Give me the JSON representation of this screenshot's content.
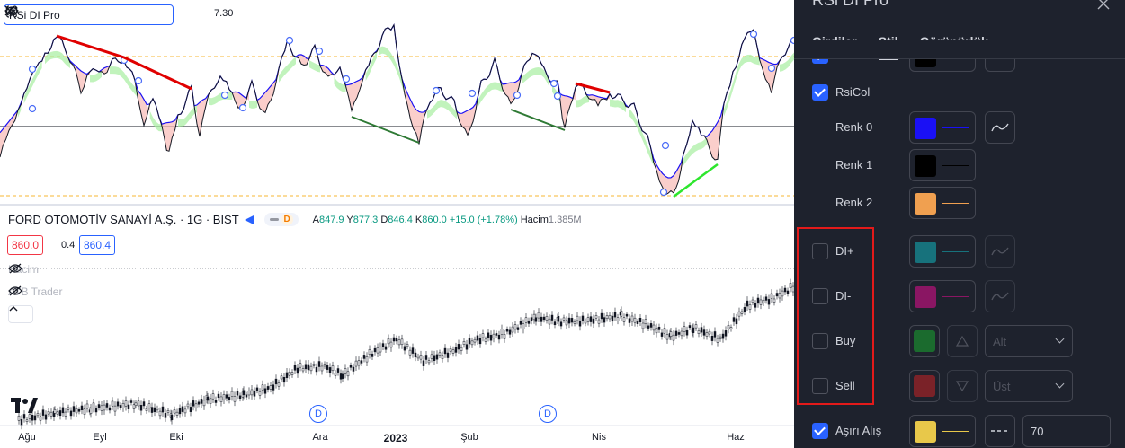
{
  "indicator_legend": {
    "name": "RSi DI Pro",
    "value_text": "7.30",
    "icons": [
      "eye-icon",
      "gear-icon",
      "code-icon",
      "close-icon",
      "more-icon"
    ]
  },
  "symbol": {
    "title": "FORD OTOMOTİV SANAYİ A.Ş. · 1G · BIST",
    "badge": "D",
    "ohlc": {
      "o_label": "A",
      "o": "847.9",
      "h_label": "Y",
      "h": "877.3",
      "l_label": "D",
      "l": "846.4",
      "c_label": "K",
      "c": "860.0",
      "change": "+15.0 (+1.78%)"
    },
    "volume_label": "Hacim",
    "volume_value": "1.385M",
    "bid": "860.0",
    "spread": "0.4",
    "ask": "860.4"
  },
  "sub_legends": {
    "volume": "Hacim",
    "atb": "ATB Trader"
  },
  "x_axis": {
    "labels": [
      "Ağu",
      "Eyl",
      "Eki",
      "Ara",
      "2023",
      "Şub",
      "Nis",
      "Haz"
    ],
    "bold": "2023"
  },
  "dividend_markers": [
    "D",
    "D"
  ],
  "panel": {
    "title": "RSi DI Pro",
    "tabs": [
      "Girdiler",
      "Stil",
      "Görünürlük"
    ],
    "active_tab": "Stil",
    "rows": {
      "rsicol": {
        "label": "RsiCol",
        "checked": true
      },
      "renk0": {
        "label": "Renk 0",
        "color": "#1a10f5"
      },
      "renk1": {
        "label": "Renk 1",
        "color": "#000000"
      },
      "renk2": {
        "label": "Renk 2",
        "color": "#f0a050"
      },
      "di_plus": {
        "label": "DI+",
        "checked": false,
        "color": "#17727c"
      },
      "di_minus": {
        "label": "DI-",
        "checked": false,
        "color": "#8a1663"
      },
      "buy": {
        "label": "Buy",
        "checked": false,
        "color": "#1b6b2e",
        "position": "Alt"
      },
      "sell": {
        "label": "Sell",
        "checked": false,
        "color": "#7a2228",
        "position": "Üst"
      },
      "asiri_alis": {
        "label": "Aşırı Alış",
        "checked": true,
        "color": "#e8c84a",
        "value": "70"
      }
    }
  }
}
